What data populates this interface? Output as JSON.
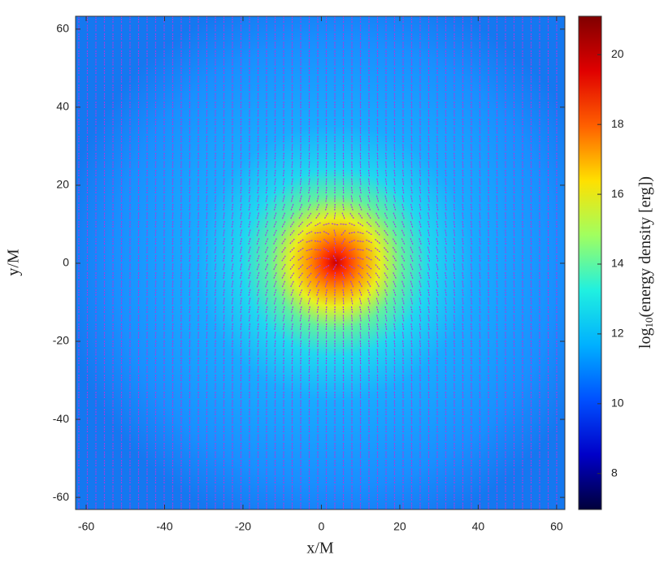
{
  "chart_data": {
    "type": "heatmap",
    "x_label": "x/M",
    "y_label": "y/M",
    "xlim": [
      -62.7,
      62.1
    ],
    "ylim": [
      -63.1,
      63.3
    ],
    "xticks": [
      -60,
      -40,
      -20,
      0,
      20,
      40,
      60
    ],
    "yticks": [
      -60,
      -40,
      -20,
      0,
      20,
      40,
      60
    ],
    "colorbar": {
      "label": {
        "prefix": "log",
        "subscript": "10",
        "suffix": "(energy density [erg])"
      },
      "clim": [
        6.97,
        21.1
      ],
      "ticks": [
        8,
        10,
        12,
        14,
        16,
        18,
        20
      ],
      "colormap": [
        "#00003a",
        "#0000c8",
        "#0050ff",
        "#00b0ff",
        "#20f0e0",
        "#a0ff60",
        "#ffe000",
        "#ff6000",
        "#e00000",
        "#800000"
      ]
    },
    "vector_color": "#a040e0"
  }
}
